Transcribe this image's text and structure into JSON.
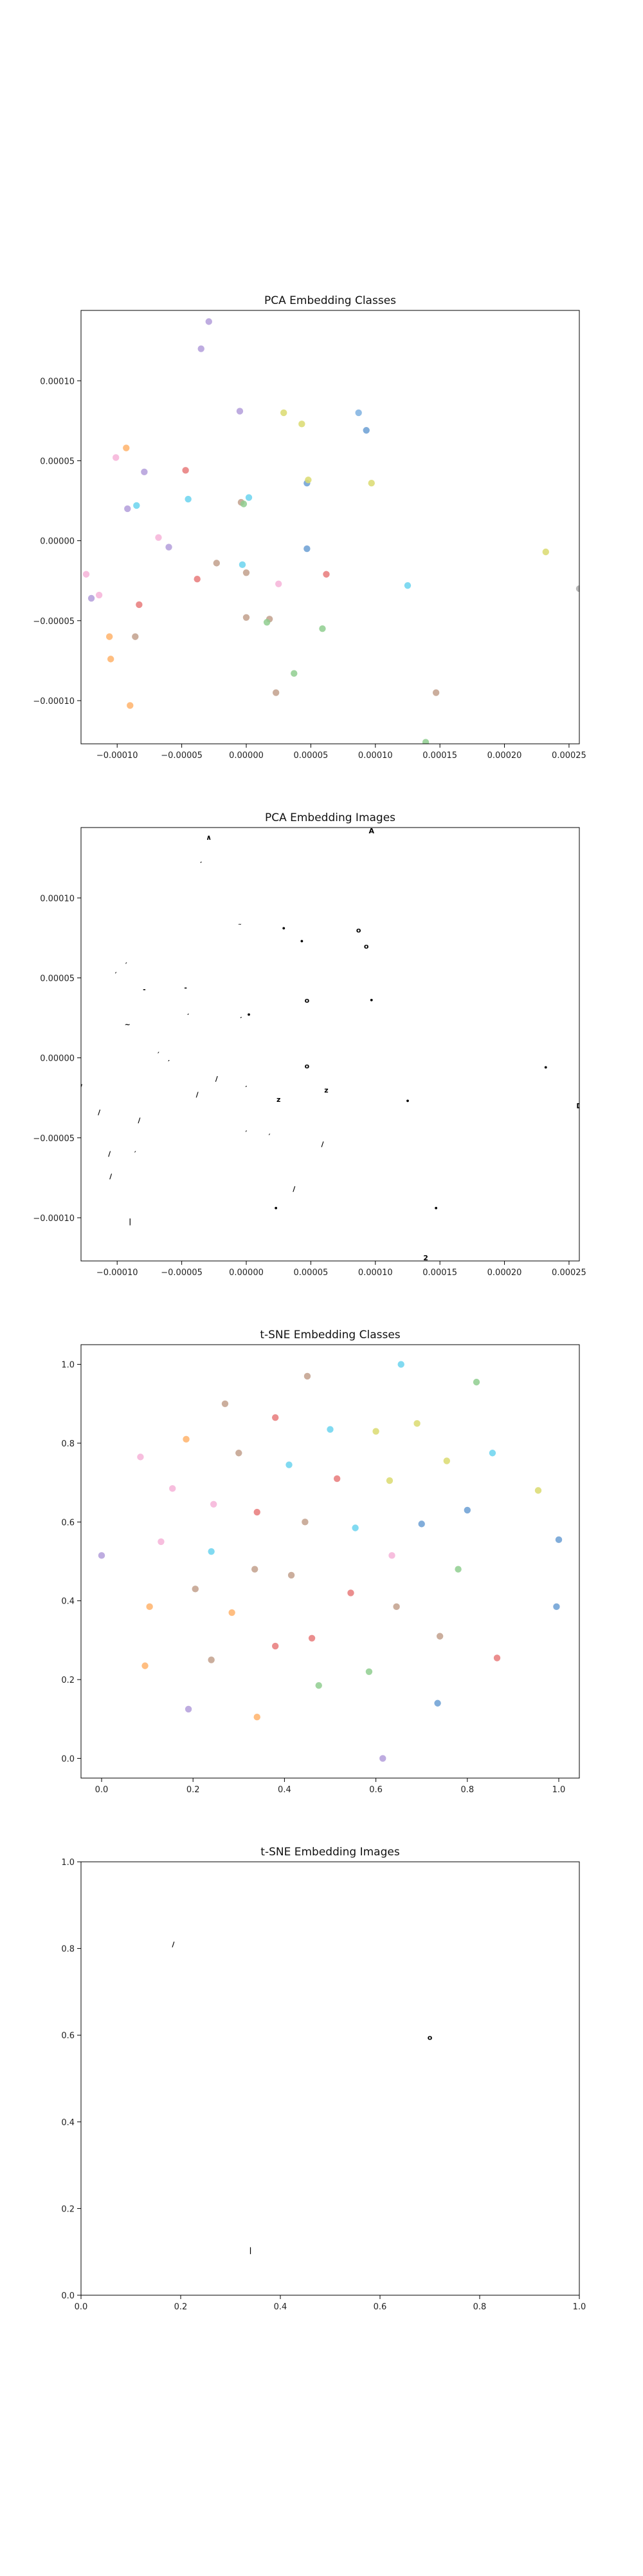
{
  "chart_data": [
    {
      "type": "scatter",
      "title": "PCA Embedding Classes",
      "xlim": [
        -0.000128,
        0.000258
      ],
      "ylim": [
        -0.000127,
        0.000144
      ],
      "xticks": [
        -0.0001,
        -5e-05,
        0.0,
        5e-05,
        0.0001,
        0.00015,
        0.0002,
        0.00025
      ],
      "xtick_labels": [
        "−0.00010",
        "−0.00005",
        "0.00000",
        "0.00005",
        "0.00010",
        "0.00015",
        "0.00020",
        "0.00025"
      ],
      "yticks": [
        -0.0001,
        -5e-05,
        0.0,
        5e-05,
        0.0001
      ],
      "ytick_labels": [
        "−0.00010",
        "−0.00005",
        "0.00000",
        "0.00005",
        "0.00010"
      ],
      "points": [
        {
          "x": -2.9e-05,
          "y": 0.000137,
          "color": "#b39ddb"
        },
        {
          "x": -3.5e-05,
          "y": 0.00012,
          "color": "#b39ddb"
        },
        {
          "x": -5e-06,
          "y": 8.1e-05,
          "color": "#b39ddb"
        },
        {
          "x": 2.9e-05,
          "y": 8e-05,
          "color": "#dbdb70"
        },
        {
          "x": 4.3e-05,
          "y": 7.3e-05,
          "color": "#dbdb70"
        },
        {
          "x": 8.7e-05,
          "y": 8e-05,
          "color": "#7fb2e0"
        },
        {
          "x": 9.3e-05,
          "y": 6.9e-05,
          "color": "#6b9fd4"
        },
        {
          "x": -9.3e-05,
          "y": 5.8e-05,
          "color": "#ffb36b"
        },
        {
          "x": -0.000101,
          "y": 5.2e-05,
          "color": "#f6b3d8"
        },
        {
          "x": -7.9e-05,
          "y": 4.3e-05,
          "color": "#b39ddb"
        },
        {
          "x": -4.7e-05,
          "y": 4.4e-05,
          "color": "#e77a7a"
        },
        {
          "x": 4.7e-05,
          "y": 3.6e-05,
          "color": "#6b9fd4"
        },
        {
          "x": 4.8e-05,
          "y": 3.8e-05,
          "color": "#dbdb70"
        },
        {
          "x": 9.7e-05,
          "y": 3.6e-05,
          "color": "#dbdb70"
        },
        {
          "x": -4.5e-05,
          "y": 2.6e-05,
          "color": "#6bd4ee"
        },
        {
          "x": -9.2e-05,
          "y": 2e-05,
          "color": "#b39ddb"
        },
        {
          "x": -8.5e-05,
          "y": 2.2e-05,
          "color": "#6bd4ee"
        },
        {
          "x": -4e-06,
          "y": 2.4e-05,
          "color": "#c2a08c"
        },
        {
          "x": -2e-06,
          "y": 2.3e-05,
          "color": "#8fce8f"
        },
        {
          "x": 2e-06,
          "y": 2.7e-05,
          "color": "#6bd4ee"
        },
        {
          "x": -6.8e-05,
          "y": 2e-06,
          "color": "#f6b3d8"
        },
        {
          "x": -6e-05,
          "y": -4e-06,
          "color": "#b39ddb"
        },
        {
          "x": 4.7e-05,
          "y": -5e-06,
          "color": "#6b9fd4"
        },
        {
          "x": -2.3e-05,
          "y": -1.4e-05,
          "color": "#c2a08c"
        },
        {
          "x": 0.0,
          "y": -2e-05,
          "color": "#c2a08c"
        },
        {
          "x": -3e-06,
          "y": -1.5e-05,
          "color": "#6bd4ee"
        },
        {
          "x": -3.8e-05,
          "y": -2.4e-05,
          "color": "#e77a7a"
        },
        {
          "x": 6.2e-05,
          "y": -2.1e-05,
          "color": "#e77a7a"
        },
        {
          "x": 2.5e-05,
          "y": -2.7e-05,
          "color": "#f6b3d8"
        },
        {
          "x": 0.000125,
          "y": -2.8e-05,
          "color": "#6bd4ee"
        },
        {
          "x": 0.000232,
          "y": -7e-06,
          "color": "#dbdb70"
        },
        {
          "x": 0.000258,
          "y": -3e-05,
          "color": "#aaaaaa"
        },
        {
          "x": -0.000124,
          "y": -2.1e-05,
          "color": "#f6b3d8"
        },
        {
          "x": -0.000114,
          "y": -3.4e-05,
          "color": "#f6b3d8"
        },
        {
          "x": -0.00012,
          "y": -3.6e-05,
          "color": "#b39ddb"
        },
        {
          "x": -8.3e-05,
          "y": -4e-05,
          "color": "#e77a7a"
        },
        {
          "x": 0.0,
          "y": -4.8e-05,
          "color": "#c2a08c"
        },
        {
          "x": 1.8e-05,
          "y": -4.9e-05,
          "color": "#c2a08c"
        },
        {
          "x": 1.6e-05,
          "y": -5.1e-05,
          "color": "#8fce8f"
        },
        {
          "x": 5.9e-05,
          "y": -5.5e-05,
          "color": "#8fce8f"
        },
        {
          "x": -0.000106,
          "y": -6e-05,
          "color": "#ffb36b"
        },
        {
          "x": -8.6e-05,
          "y": -6e-05,
          "color": "#c2a08c"
        },
        {
          "x": -0.000105,
          "y": -7.4e-05,
          "color": "#ffb36b"
        },
        {
          "x": 3.7e-05,
          "y": -8.3e-05,
          "color": "#8fce8f"
        },
        {
          "x": 2.3e-05,
          "y": -9.5e-05,
          "color": "#c2a08c"
        },
        {
          "x": 0.000147,
          "y": -9.5e-05,
          "color": "#c2a08c"
        },
        {
          "x": -9e-05,
          "y": -0.000103,
          "color": "#ffb36b"
        },
        {
          "x": 0.000139,
          "y": -0.000126,
          "color": "#8fce8f"
        }
      ]
    },
    {
      "type": "scatter",
      "title": "PCA Embedding Images",
      "xlim": [
        -0.000128,
        0.000258
      ],
      "ylim": [
        -0.000127,
        0.000144
      ],
      "xticks": [
        -0.0001,
        -5e-05,
        0.0,
        5e-05,
        0.0001,
        0.00015,
        0.0002,
        0.00025
      ],
      "xtick_labels": [
        "−0.00010",
        "−0.00005",
        "0.00000",
        "0.00005",
        "0.00010",
        "0.00015",
        "0.00020",
        "0.00025"
      ],
      "yticks": [
        -0.0001,
        -5e-05,
        0.0,
        5e-05,
        0.0001
      ],
      "ytick_labels": [
        "−0.00010",
        "−0.00005",
        "0.00000",
        "0.00005",
        "0.00010"
      ],
      "image_marks": [
        {
          "x": -2.9e-05,
          "y": 0.000138,
          "glyph": "∧"
        },
        {
          "x": -3.5e-05,
          "y": 0.000121,
          "glyph": "′"
        },
        {
          "x": -5e-06,
          "y": 8.2e-05,
          "glyph": "˜"
        },
        {
          "x": 2.9e-05,
          "y": 8.1e-05,
          "glyph": "•"
        },
        {
          "x": 4.3e-05,
          "y": 7.3e-05,
          "glyph": "•"
        },
        {
          "x": 8.7e-05,
          "y": 8e-05,
          "glyph": "o"
        },
        {
          "x": 9.3e-05,
          "y": 7e-05,
          "glyph": "o"
        },
        {
          "x": 9.7e-05,
          "y": 3.6e-05,
          "glyph": "•"
        },
        {
          "x": -9.3e-05,
          "y": 5.8e-05,
          "glyph": "′"
        },
        {
          "x": -0.000101,
          "y": 5.2e-05,
          "glyph": "′"
        },
        {
          "x": -7.9e-05,
          "y": 4.3e-05,
          "glyph": "-"
        },
        {
          "x": -4.7e-05,
          "y": 4.4e-05,
          "glyph": "-"
        },
        {
          "x": 4.7e-05,
          "y": 3.6e-05,
          "glyph": "o"
        },
        {
          "x": -4.5e-05,
          "y": 2.6e-05,
          "glyph": "′"
        },
        {
          "x": -9.2e-05,
          "y": 2.1e-05,
          "glyph": "~"
        },
        {
          "x": -4e-06,
          "y": 2.4e-05,
          "glyph": "′"
        },
        {
          "x": 2e-06,
          "y": 2.7e-05,
          "glyph": "•"
        },
        {
          "x": -6.8e-05,
          "y": 2e-06,
          "glyph": "′"
        },
        {
          "x": -6e-05,
          "y": -3e-06,
          "glyph": "′"
        },
        {
          "x": 4.7e-05,
          "y": -5e-06,
          "glyph": "o"
        },
        {
          "x": -2.3e-05,
          "y": -1.3e-05,
          "glyph": "/"
        },
        {
          "x": 0.0,
          "y": -1.9e-05,
          "glyph": "′"
        },
        {
          "x": -3.8e-05,
          "y": -2.3e-05,
          "glyph": "/"
        },
        {
          "x": 2.5e-05,
          "y": -2.6e-05,
          "glyph": "z"
        },
        {
          "x": 6.2e-05,
          "y": -2e-05,
          "glyph": "z"
        },
        {
          "x": 0.000125,
          "y": -2.7e-05,
          "glyph": "•"
        },
        {
          "x": 0.000232,
          "y": -6e-06,
          "glyph": "•"
        },
        {
          "x": 0.000258,
          "y": -3e-05,
          "glyph": "D"
        },
        {
          "x": -0.000128,
          "y": -1.8e-05,
          "glyph": "/"
        },
        {
          "x": -0.000114,
          "y": -3.4e-05,
          "glyph": "/"
        },
        {
          "x": -8.3e-05,
          "y": -3.9e-05,
          "glyph": "/"
        },
        {
          "x": 0.0,
          "y": -4.7e-05,
          "glyph": "′"
        },
        {
          "x": 1.8e-05,
          "y": -4.9e-05,
          "glyph": "′"
        },
        {
          "x": 5.9e-05,
          "y": -5.4e-05,
          "glyph": "/"
        },
        {
          "x": -0.000106,
          "y": -6e-05,
          "glyph": "/"
        },
        {
          "x": -8.6e-05,
          "y": -6e-05,
          "glyph": "′"
        },
        {
          "x": -0.000105,
          "y": -7.4e-05,
          "glyph": "/"
        },
        {
          "x": 3.7e-05,
          "y": -8.2e-05,
          "glyph": "/"
        },
        {
          "x": 2.3e-05,
          "y": -9.4e-05,
          "glyph": "•"
        },
        {
          "x": 0.000147,
          "y": -9.4e-05,
          "glyph": "•"
        },
        {
          "x": -9e-05,
          "y": -0.000102,
          "glyph": "|"
        },
        {
          "x": 0.000139,
          "y": -0.000125,
          "glyph": "2"
        },
        {
          "x": 9.7e-05,
          "y": 0.000142,
          "glyph": "A"
        }
      ]
    },
    {
      "type": "scatter",
      "title": "t-SNE Embedding Classes",
      "xlim": [
        -0.045,
        1.045
      ],
      "ylim": [
        -0.05,
        1.05
      ],
      "xticks": [
        0.0,
        0.2,
        0.4,
        0.6,
        0.8,
        1.0
      ],
      "xtick_labels": [
        "0.0",
        "0.2",
        "0.4",
        "0.6",
        "0.8",
        "1.0"
      ],
      "yticks": [
        0.0,
        0.2,
        0.4,
        0.6,
        0.8,
        1.0
      ],
      "ytick_labels": [
        "0.0",
        "0.2",
        "0.4",
        "0.6",
        "0.8",
        "1.0"
      ],
      "points": [
        {
          "x": 0.655,
          "y": 1.0,
          "color": "#6bd4ee"
        },
        {
          "x": 0.45,
          "y": 0.97,
          "color": "#c2a08c"
        },
        {
          "x": 0.82,
          "y": 0.955,
          "color": "#8fce8f"
        },
        {
          "x": 0.27,
          "y": 0.9,
          "color": "#c2a08c"
        },
        {
          "x": 0.38,
          "y": 0.865,
          "color": "#e77a7a"
        },
        {
          "x": 0.69,
          "y": 0.85,
          "color": "#dbdb70"
        },
        {
          "x": 0.5,
          "y": 0.835,
          "color": "#6bd4ee"
        },
        {
          "x": 0.6,
          "y": 0.83,
          "color": "#dbdb70"
        },
        {
          "x": 0.185,
          "y": 0.81,
          "color": "#ffb36b"
        },
        {
          "x": 0.085,
          "y": 0.765,
          "color": "#f6b3d8"
        },
        {
          "x": 0.3,
          "y": 0.775,
          "color": "#c2a08c"
        },
        {
          "x": 0.855,
          "y": 0.775,
          "color": "#6bd4ee"
        },
        {
          "x": 0.755,
          "y": 0.755,
          "color": "#dbdb70"
        },
        {
          "x": 0.41,
          "y": 0.745,
          "color": "#6bd4ee"
        },
        {
          "x": 0.515,
          "y": 0.71,
          "color": "#e77a7a"
        },
        {
          "x": 0.63,
          "y": 0.705,
          "color": "#dbdb70"
        },
        {
          "x": 0.155,
          "y": 0.685,
          "color": "#f6b3d8"
        },
        {
          "x": 0.955,
          "y": 0.68,
          "color": "#dbdb70"
        },
        {
          "x": 0.245,
          "y": 0.645,
          "color": "#f6b3d8"
        },
        {
          "x": 0.8,
          "y": 0.63,
          "color": "#6b9fd4"
        },
        {
          "x": 0.34,
          "y": 0.625,
          "color": "#e77a7a"
        },
        {
          "x": 0.445,
          "y": 0.6,
          "color": "#c2a08c"
        },
        {
          "x": 0.7,
          "y": 0.595,
          "color": "#6b9fd4"
        },
        {
          "x": 0.555,
          "y": 0.585,
          "color": "#6bd4ee"
        },
        {
          "x": 1.0,
          "y": 0.555,
          "color": "#6b9fd4"
        },
        {
          "x": 0.13,
          "y": 0.55,
          "color": "#f6b3d8"
        },
        {
          "x": 0.24,
          "y": 0.525,
          "color": "#6bd4ee"
        },
        {
          "x": 0.0,
          "y": 0.515,
          "color": "#b39ddb"
        },
        {
          "x": 0.635,
          "y": 0.515,
          "color": "#f6b3d8"
        },
        {
          "x": 0.335,
          "y": 0.48,
          "color": "#c2a08c"
        },
        {
          "x": 0.78,
          "y": 0.48,
          "color": "#8fce8f"
        },
        {
          "x": 0.415,
          "y": 0.465,
          "color": "#c2a08c"
        },
        {
          "x": 0.205,
          "y": 0.43,
          "color": "#c2a08c"
        },
        {
          "x": 0.545,
          "y": 0.42,
          "color": "#e77a7a"
        },
        {
          "x": 0.105,
          "y": 0.385,
          "color": "#ffb36b"
        },
        {
          "x": 0.645,
          "y": 0.385,
          "color": "#c2a08c"
        },
        {
          "x": 0.995,
          "y": 0.385,
          "color": "#6b9fd4"
        },
        {
          "x": 0.285,
          "y": 0.37,
          "color": "#ffb36b"
        },
        {
          "x": 0.74,
          "y": 0.31,
          "color": "#c2a08c"
        },
        {
          "x": 0.46,
          "y": 0.305,
          "color": "#e77a7a"
        },
        {
          "x": 0.38,
          "y": 0.285,
          "color": "#e77a7a"
        },
        {
          "x": 0.865,
          "y": 0.255,
          "color": "#e77a7a"
        },
        {
          "x": 0.24,
          "y": 0.25,
          "color": "#c2a08c"
        },
        {
          "x": 0.095,
          "y": 0.235,
          "color": "#ffb36b"
        },
        {
          "x": 0.585,
          "y": 0.22,
          "color": "#8fce8f"
        },
        {
          "x": 0.475,
          "y": 0.185,
          "color": "#8fce8f"
        },
        {
          "x": 0.735,
          "y": 0.14,
          "color": "#6b9fd4"
        },
        {
          "x": 0.19,
          "y": 0.125,
          "color": "#b39ddb"
        },
        {
          "x": 0.34,
          "y": 0.105,
          "color": "#ffb36b"
        },
        {
          "x": 0.615,
          "y": 0.0,
          "color": "#b39ddb"
        }
      ]
    },
    {
      "type": "scatter",
      "title": "t-SNE Embedding Images",
      "xlim": [
        0.0,
        1.0
      ],
      "ylim": [
        0.0,
        1.0
      ],
      "xticks": [
        0.0,
        0.2,
        0.4,
        0.6,
        0.8,
        1.0
      ],
      "xtick_labels": [
        "0.0",
        "0.2",
        "0.4",
        "0.6",
        "0.8",
        "1.0"
      ],
      "yticks": [
        0.0,
        0.2,
        0.4,
        0.6,
        0.8,
        1.0
      ],
      "ytick_labels": [
        "0.0",
        "0.2",
        "0.4",
        "0.6",
        "0.8",
        "1.0"
      ],
      "image_marks": [
        {
          "x": 0.185,
          "y": 0.81,
          "glyph": "/"
        },
        {
          "x": 0.7,
          "y": 0.595,
          "glyph": "o"
        },
        {
          "x": 0.34,
          "y": 0.105,
          "glyph": "|"
        }
      ]
    }
  ]
}
